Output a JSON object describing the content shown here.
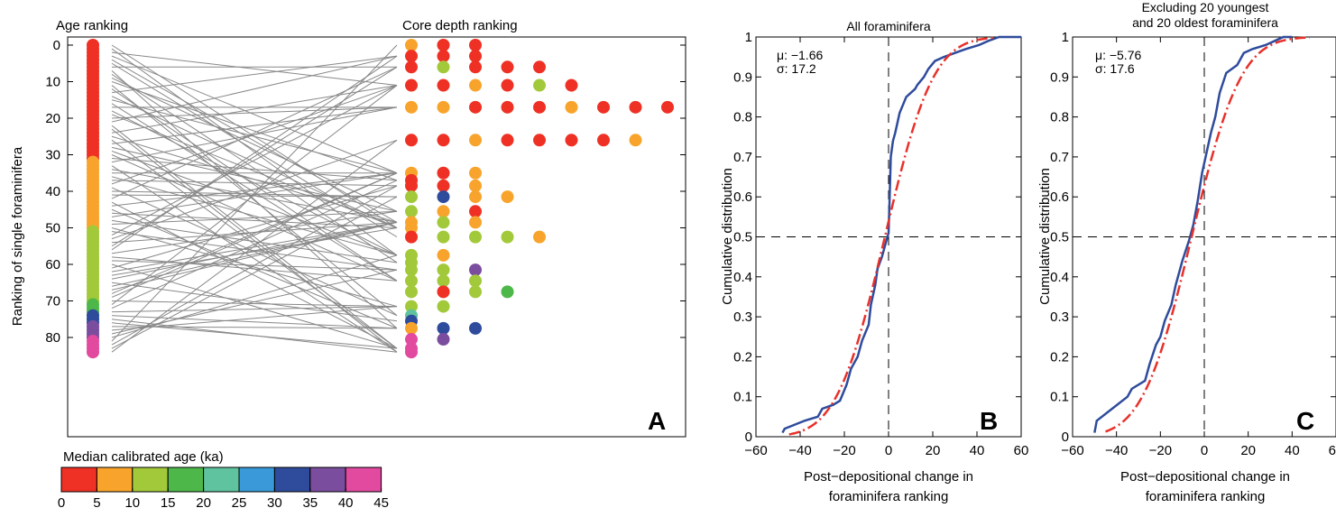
{
  "colors": {
    "red": "#ee3124",
    "orange": "#f8a42c",
    "lightgreen": "#a2c93a",
    "green": "#4db749",
    "teal": "#5fc3a0",
    "lightblue": "#3a9ad9",
    "blue": "#2e4b9c",
    "purple": "#7b4d9e",
    "pink": "#e24a9f",
    "connector": "#888888",
    "cdf_blue": "#2e4b9c",
    "cdf_red": "#e8302a"
  },
  "chart_data": [
    {
      "type": "scatter",
      "panel_label": "A",
      "left_title": "Age ranking",
      "right_title": "Core depth ranking",
      "ylabel": "Ranking of single foraminifera",
      "ylim": [
        -2,
        86
      ],
      "yticks": [
        "0",
        "10",
        "20",
        "30",
        "40",
        "50",
        "60",
        "70",
        "80"
      ],
      "age_color_blocks": [
        {
          "from": 0,
          "to": 31,
          "color": "red"
        },
        {
          "from": 32,
          "to": 50,
          "color": "orange"
        },
        {
          "from": 51,
          "to": 70,
          "color": "lightgreen"
        },
        {
          "from": 71,
          "to": 73,
          "color": "green"
        },
        {
          "from": 74,
          "to": 76,
          "color": "blue"
        },
        {
          "from": 77,
          "to": 80,
          "color": "purple"
        },
        {
          "from": 81,
          "to": 84,
          "color": "pink"
        }
      ],
      "depth_rows": [
        {
          "rank": 0,
          "colors": [
            "orange",
            "red",
            "red"
          ]
        },
        {
          "rank": 3,
          "colors": [
            "red",
            "red",
            "red"
          ]
        },
        {
          "rank": 6,
          "colors": [
            "red",
            "lightgreen",
            "red",
            "red",
            "red"
          ]
        },
        {
          "rank": 11,
          "colors": [
            "red",
            "red",
            "orange",
            "red",
            "lightgreen",
            "red"
          ]
        },
        {
          "rank": 17,
          "colors": [
            "orange",
            "orange",
            "red",
            "red",
            "red",
            "orange",
            "red",
            "red",
            "red"
          ]
        },
        {
          "rank": 26,
          "colors": [
            "red",
            "red",
            "orange",
            "red",
            "red",
            "red",
            "red",
            "orange"
          ]
        },
        {
          "rank": 35,
          "colors": [
            "orange",
            "red",
            "orange"
          ]
        },
        {
          "rank": 37,
          "colors": [
            "red"
          ]
        },
        {
          "rank": 38.5,
          "colors": [
            "red",
            "red",
            "orange"
          ]
        },
        {
          "rank": 41.5,
          "colors": [
            "lightgreen",
            "blue",
            "orange",
            "orange"
          ]
        },
        {
          "rank": 45.5,
          "colors": [
            "lightgreen",
            "orange",
            "red"
          ]
        },
        {
          "rank": 48.5,
          "colors": [
            "orange",
            "lightgreen",
            "orange"
          ]
        },
        {
          "rank": 50,
          "colors": [
            "orange"
          ]
        },
        {
          "rank": 52.5,
          "colors": [
            "red",
            "lightgreen",
            "lightgreen",
            "lightgreen",
            "orange"
          ]
        },
        {
          "rank": 57.5,
          "colors": [
            "lightgreen",
            "orange"
          ]
        },
        {
          "rank": 59.5,
          "colors": [
            "lightgreen"
          ]
        },
        {
          "rank": 61.5,
          "colors": [
            "lightgreen",
            "lightgreen",
            "purple"
          ]
        },
        {
          "rank": 64.5,
          "colors": [
            "lightgreen",
            "lightgreen",
            "lightgreen"
          ]
        },
        {
          "rank": 67.5,
          "colors": [
            "lightgreen",
            "red",
            "lightgreen",
            "green"
          ]
        },
        {
          "rank": 71.5,
          "colors": [
            "lightgreen",
            "lightgreen"
          ]
        },
        {
          "rank": 74,
          "colors": [
            "teal"
          ]
        },
        {
          "rank": 75.5,
          "colors": [
            "blue"
          ]
        },
        {
          "rank": 77.5,
          "colors": [
            "orange",
            "blue",
            "blue"
          ]
        },
        {
          "rank": 80.5,
          "colors": [
            "pink",
            "purple"
          ]
        },
        {
          "rank": 83,
          "colors": [
            "pink"
          ]
        },
        {
          "rank": 84,
          "colors": [
            "pink"
          ]
        }
      ],
      "colorbar": {
        "title": "Median calibrated age (ka)",
        "ticks": [
          "0",
          "5",
          "10",
          "15",
          "20",
          "25",
          "30",
          "35",
          "40",
          "45"
        ],
        "colors": [
          "red",
          "orange",
          "lightgreen",
          "green",
          "teal",
          "lightblue",
          "blue",
          "purple",
          "pink"
        ]
      }
    },
    {
      "type": "line",
      "panel_label": "B",
      "title": "All foraminifera",
      "stats": [
        "μ: −1.66",
        "σ: 17.2"
      ],
      "xlabel": [
        "Post−depositional change in",
        "foraminifera ranking"
      ],
      "ylabel": "Cumulative distribution",
      "xlim": [
        -60,
        60
      ],
      "ylim": [
        0,
        1
      ],
      "xticks": [
        -60,
        -40,
        -20,
        0,
        20,
        40,
        60
      ],
      "xtick_labels": [
        "−60",
        "−40",
        "−20",
        "0",
        "20",
        "40",
        "60"
      ],
      "yticks": [
        0,
        0.1,
        0.2,
        0.3,
        0.4,
        0.5,
        0.6,
        0.7,
        0.8,
        0.9,
        1
      ],
      "ytick_labels": [
        "0",
        "0.1",
        "0.2",
        "0.3",
        "0.4",
        "0.5",
        "0.6",
        "0.7",
        "0.8",
        "0.9",
        "1"
      ],
      "series": [
        {
          "style": "empirical",
          "color": "cdf_blue",
          "x": [
            -48,
            -47,
            -38,
            -32,
            -30,
            -25,
            -22,
            -19,
            -17,
            -14,
            -12,
            -9,
            -8,
            -6,
            -5,
            -3,
            -2,
            -1,
            0,
            0.5,
            1,
            2,
            3,
            5,
            8,
            12,
            13,
            16,
            18,
            21,
            25,
            30,
            35,
            41,
            45,
            50,
            55,
            60
          ],
          "y": [
            0.01,
            0.02,
            0.04,
            0.05,
            0.07,
            0.08,
            0.09,
            0.13,
            0.17,
            0.2,
            0.24,
            0.28,
            0.33,
            0.38,
            0.42,
            0.45,
            0.47,
            0.49,
            0.51,
            0.6,
            0.7,
            0.74,
            0.76,
            0.81,
            0.85,
            0.87,
            0.88,
            0.9,
            0.92,
            0.94,
            0.95,
            0.96,
            0.97,
            0.98,
            0.99,
            1.0,
            1.0,
            1.0
          ]
        },
        {
          "style": "normal_fit",
          "color": "cdf_red",
          "mu": -1.66,
          "sigma": 17.2
        }
      ],
      "reference_lines": {
        "x": 0,
        "y": 0.5
      }
    },
    {
      "type": "line",
      "panel_label": "C",
      "title": [
        "Excluding 20 youngest",
        "and 20 oldest foraminifera"
      ],
      "stats": [
        "μ: −5.76",
        "σ: 17.6"
      ],
      "xlabel": [
        "Post−depositional change in",
        "foraminifera ranking"
      ],
      "ylabel": "Cumulative distribution",
      "xlim": [
        -60,
        60
      ],
      "ylim": [
        0,
        1
      ],
      "xticks": [
        -60,
        -40,
        -20,
        0,
        20,
        40,
        60
      ],
      "xtick_labels": [
        "−60",
        "−40",
        "−20",
        "0",
        "20",
        "40",
        "60"
      ],
      "yticks": [
        0,
        0.1,
        0.2,
        0.3,
        0.4,
        0.5,
        0.6,
        0.7,
        0.8,
        0.9,
        1
      ],
      "ytick_labels": [
        "0",
        "0.1",
        "0.2",
        "0.3",
        "0.4",
        "0.5",
        "0.6",
        "0.7",
        "0.8",
        "0.9",
        "1"
      ],
      "series": [
        {
          "style": "empirical",
          "color": "cdf_blue",
          "x": [
            -50,
            -49,
            -42,
            -35,
            -33,
            -27,
            -25,
            -22,
            -20,
            -18,
            -15,
            -13,
            -10,
            -7,
            -5,
            -3,
            -1,
            1,
            3,
            5,
            7,
            10,
            15,
            18,
            22,
            28,
            32,
            36,
            40
          ],
          "y": [
            0.01,
            0.04,
            0.07,
            0.1,
            0.12,
            0.14,
            0.18,
            0.23,
            0.25,
            0.29,
            0.33,
            0.38,
            0.44,
            0.49,
            0.53,
            0.59,
            0.66,
            0.71,
            0.76,
            0.8,
            0.86,
            0.91,
            0.93,
            0.96,
            0.97,
            0.98,
            0.99,
            1.0,
            1.0
          ]
        },
        {
          "style": "normal_fit",
          "color": "cdf_red",
          "mu": -5.76,
          "sigma": 17.6
        }
      ],
      "reference_lines": {
        "x": 0,
        "y": 0.5
      }
    }
  ]
}
